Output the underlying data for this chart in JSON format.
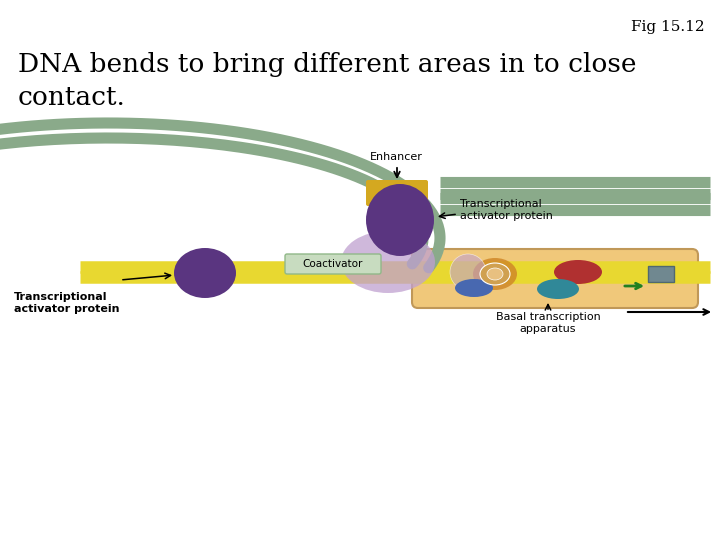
{
  "title_fig": "Fig 15.12",
  "title_line1": "DNA bends to bring different areas in to close",
  "title_line2": "contact.",
  "bg_color": "#ffffff",
  "dna_gray": "#8aaa8a",
  "dna_yellow": "#e8d830",
  "enhancer_color": "#d4a820",
  "purple_dark": "#5a3580",
  "purple_light": "#c0a0d0",
  "coactivator_bg": "#c8dcc0",
  "basal_bg": "#f0c87a",
  "red_oval": "#b03030",
  "blue_oval": "#4868b0",
  "teal_oval": "#308898",
  "orange_oval": "#c87828",
  "green_arrow_color": "#208020",
  "gray_box_color": "#708890"
}
